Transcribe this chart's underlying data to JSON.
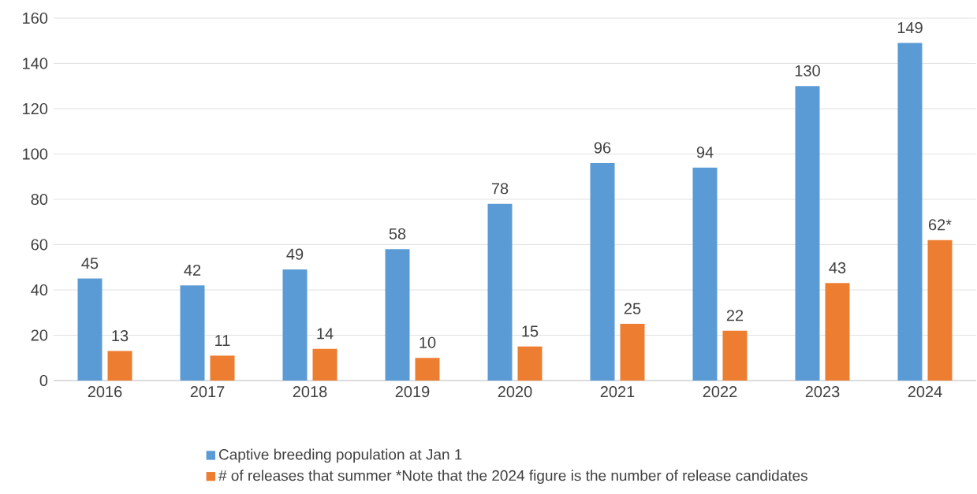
{
  "chart_data": {
    "type": "bar",
    "categories": [
      "2016",
      "2017",
      "2018",
      "2019",
      "2020",
      "2021",
      "2022",
      "2023",
      "2024"
    ],
    "series": [
      {
        "name": "Captive breeding population at Jan 1",
        "color": "#5b9bd5",
        "values": [
          45,
          42,
          49,
          58,
          78,
          96,
          94,
          130,
          149
        ],
        "value_labels": [
          "45",
          "42",
          "49",
          "58",
          "78",
          "96",
          "94",
          "130",
          "149"
        ]
      },
      {
        "name": "# of releases that summer  *Note that the 2024 figure is the number of release candidates",
        "color": "#ed7d31",
        "values": [
          13,
          11,
          14,
          10,
          15,
          25,
          22,
          43,
          62
        ],
        "value_labels": [
          "13",
          "11",
          "14",
          "10",
          "15",
          "25",
          "22",
          "43",
          "62*"
        ]
      }
    ],
    "ylim": [
      0,
      160
    ],
    "yticks": [
      0,
      20,
      40,
      60,
      80,
      100,
      120,
      140,
      160
    ],
    "grid": "y",
    "legend": "bottom"
  }
}
